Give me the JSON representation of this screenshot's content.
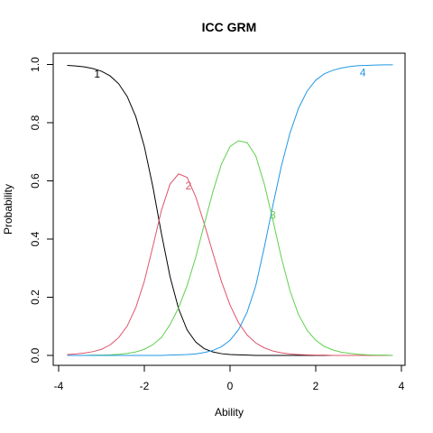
{
  "chart_data": {
    "type": "line",
    "title": "ICC GRM",
    "xlabel": "Ability",
    "ylabel": "Probability",
    "xlim": [
      -4,
      4
    ],
    "ylim": [
      0,
      1
    ],
    "x_ticks": [
      -4,
      -2,
      0,
      2,
      4
    ],
    "y_ticks": [
      0.0,
      0.2,
      0.4,
      0.6,
      0.8,
      1.0
    ],
    "x_tick_labels": [
      "-4",
      "-2",
      "0",
      "2",
      "4"
    ],
    "y_tick_labels": [
      "0.0",
      "0.2",
      "0.4",
      "0.6",
      "0.8",
      "1.0"
    ],
    "grid": false,
    "legend": "none",
    "x": [
      -3.8,
      -3.6,
      -3.4,
      -3.2,
      -3.0,
      -2.8,
      -2.6,
      -2.4,
      -2.2,
      -2.0,
      -1.8,
      -1.6,
      -1.4,
      -1.2,
      -1.0,
      -0.8,
      -0.6,
      -0.4,
      -0.2,
      0.0,
      0.2,
      0.4,
      0.6,
      0.8,
      1.0,
      1.2,
      1.4,
      1.6,
      1.8,
      2.0,
      2.2,
      2.4,
      2.6,
      2.8,
      3.0,
      3.2,
      3.4,
      3.6,
      3.8
    ],
    "series": [
      {
        "name": "1",
        "color": "#000000",
        "label_at": [
          -3.1,
          0.965
        ],
        "values": [
          0.997,
          0.995,
          0.992,
          0.986,
          0.977,
          0.961,
          0.934,
          0.89,
          0.821,
          0.718,
          0.579,
          0.418,
          0.271,
          0.16,
          0.087,
          0.046,
          0.023,
          0.012,
          0.006,
          0.003,
          0.002,
          0.001,
          0.0,
          0.0,
          0.0,
          0.0,
          0.0,
          0.0,
          0.0,
          0.0,
          0.0,
          0.0,
          0.0,
          0.0,
          0.0,
          0.0,
          0.0,
          0.0,
          0.0
        ]
      },
      {
        "name": "2",
        "color": "#DF536B",
        "label_at": [
          -0.97,
          0.58
        ],
        "values": [
          0.003,
          0.005,
          0.008,
          0.013,
          0.021,
          0.036,
          0.061,
          0.101,
          0.164,
          0.255,
          0.375,
          0.499,
          0.589,
          0.624,
          0.612,
          0.545,
          0.452,
          0.352,
          0.254,
          0.173,
          0.112,
          0.07,
          0.043,
          0.026,
          0.015,
          0.009,
          0.005,
          0.003,
          0.002,
          0.001,
          0.001,
          0.0,
          0.0,
          0.0,
          0.0,
          0.0,
          0.0,
          0.0,
          0.0
        ]
      },
      {
        "name": "3",
        "color": "#61D04F",
        "label_at": [
          1.0,
          0.48
        ],
        "values": [
          0.0,
          0.0,
          0.0,
          0.001,
          0.001,
          0.002,
          0.004,
          0.007,
          0.012,
          0.021,
          0.037,
          0.062,
          0.106,
          0.164,
          0.241,
          0.338,
          0.451,
          0.563,
          0.658,
          0.718,
          0.738,
          0.731,
          0.686,
          0.589,
          0.465,
          0.335,
          0.222,
          0.14,
          0.086,
          0.052,
          0.031,
          0.019,
          0.011,
          0.007,
          0.004,
          0.002,
          0.001,
          0.001,
          0.0
        ]
      },
      {
        "name": "4",
        "color": "#2297E6",
        "label_at": [
          3.1,
          0.97
        ],
        "values": [
          0.0,
          0.0,
          0.0,
          0.0,
          0.0,
          0.0,
          0.0,
          0.0,
          0.0,
          0.0,
          0.0,
          0.0,
          0.001,
          0.002,
          0.003,
          0.005,
          0.01,
          0.017,
          0.03,
          0.052,
          0.089,
          0.149,
          0.239,
          0.372,
          0.516,
          0.652,
          0.765,
          0.85,
          0.909,
          0.946,
          0.968,
          0.98,
          0.988,
          0.993,
          0.996,
          0.997,
          0.998,
          0.999,
          0.999
        ]
      }
    ]
  }
}
